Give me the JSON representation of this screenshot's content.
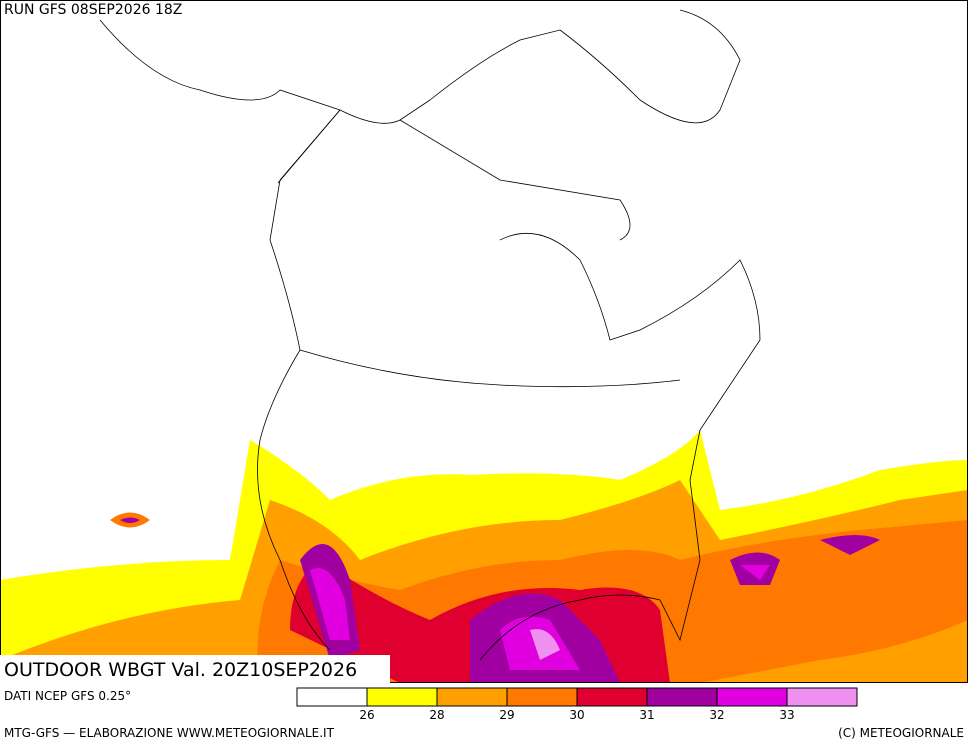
{
  "header": {
    "run": "RUN GFS 08SEP2026 18Z",
    "title": "OUTDOOR WBGT Val. 20Z10SEP2026"
  },
  "legend": {
    "colors": [
      "#ffffff",
      "#ffff00",
      "#ffa000",
      "#ff7800",
      "#e00030",
      "#a000a0",
      "#e000e0",
      "#f090f0"
    ],
    "ticks": [
      26,
      28,
      29,
      30,
      31,
      32,
      33
    ]
  },
  "footer": {
    "source": "DATI NCEP GFS 0.25°",
    "credits": "MTG-GFS — ELABORAZIONE WWW.METEOGIORNALE.IT",
    "copyright": "(C) METEOGIORNALE"
  }
}
